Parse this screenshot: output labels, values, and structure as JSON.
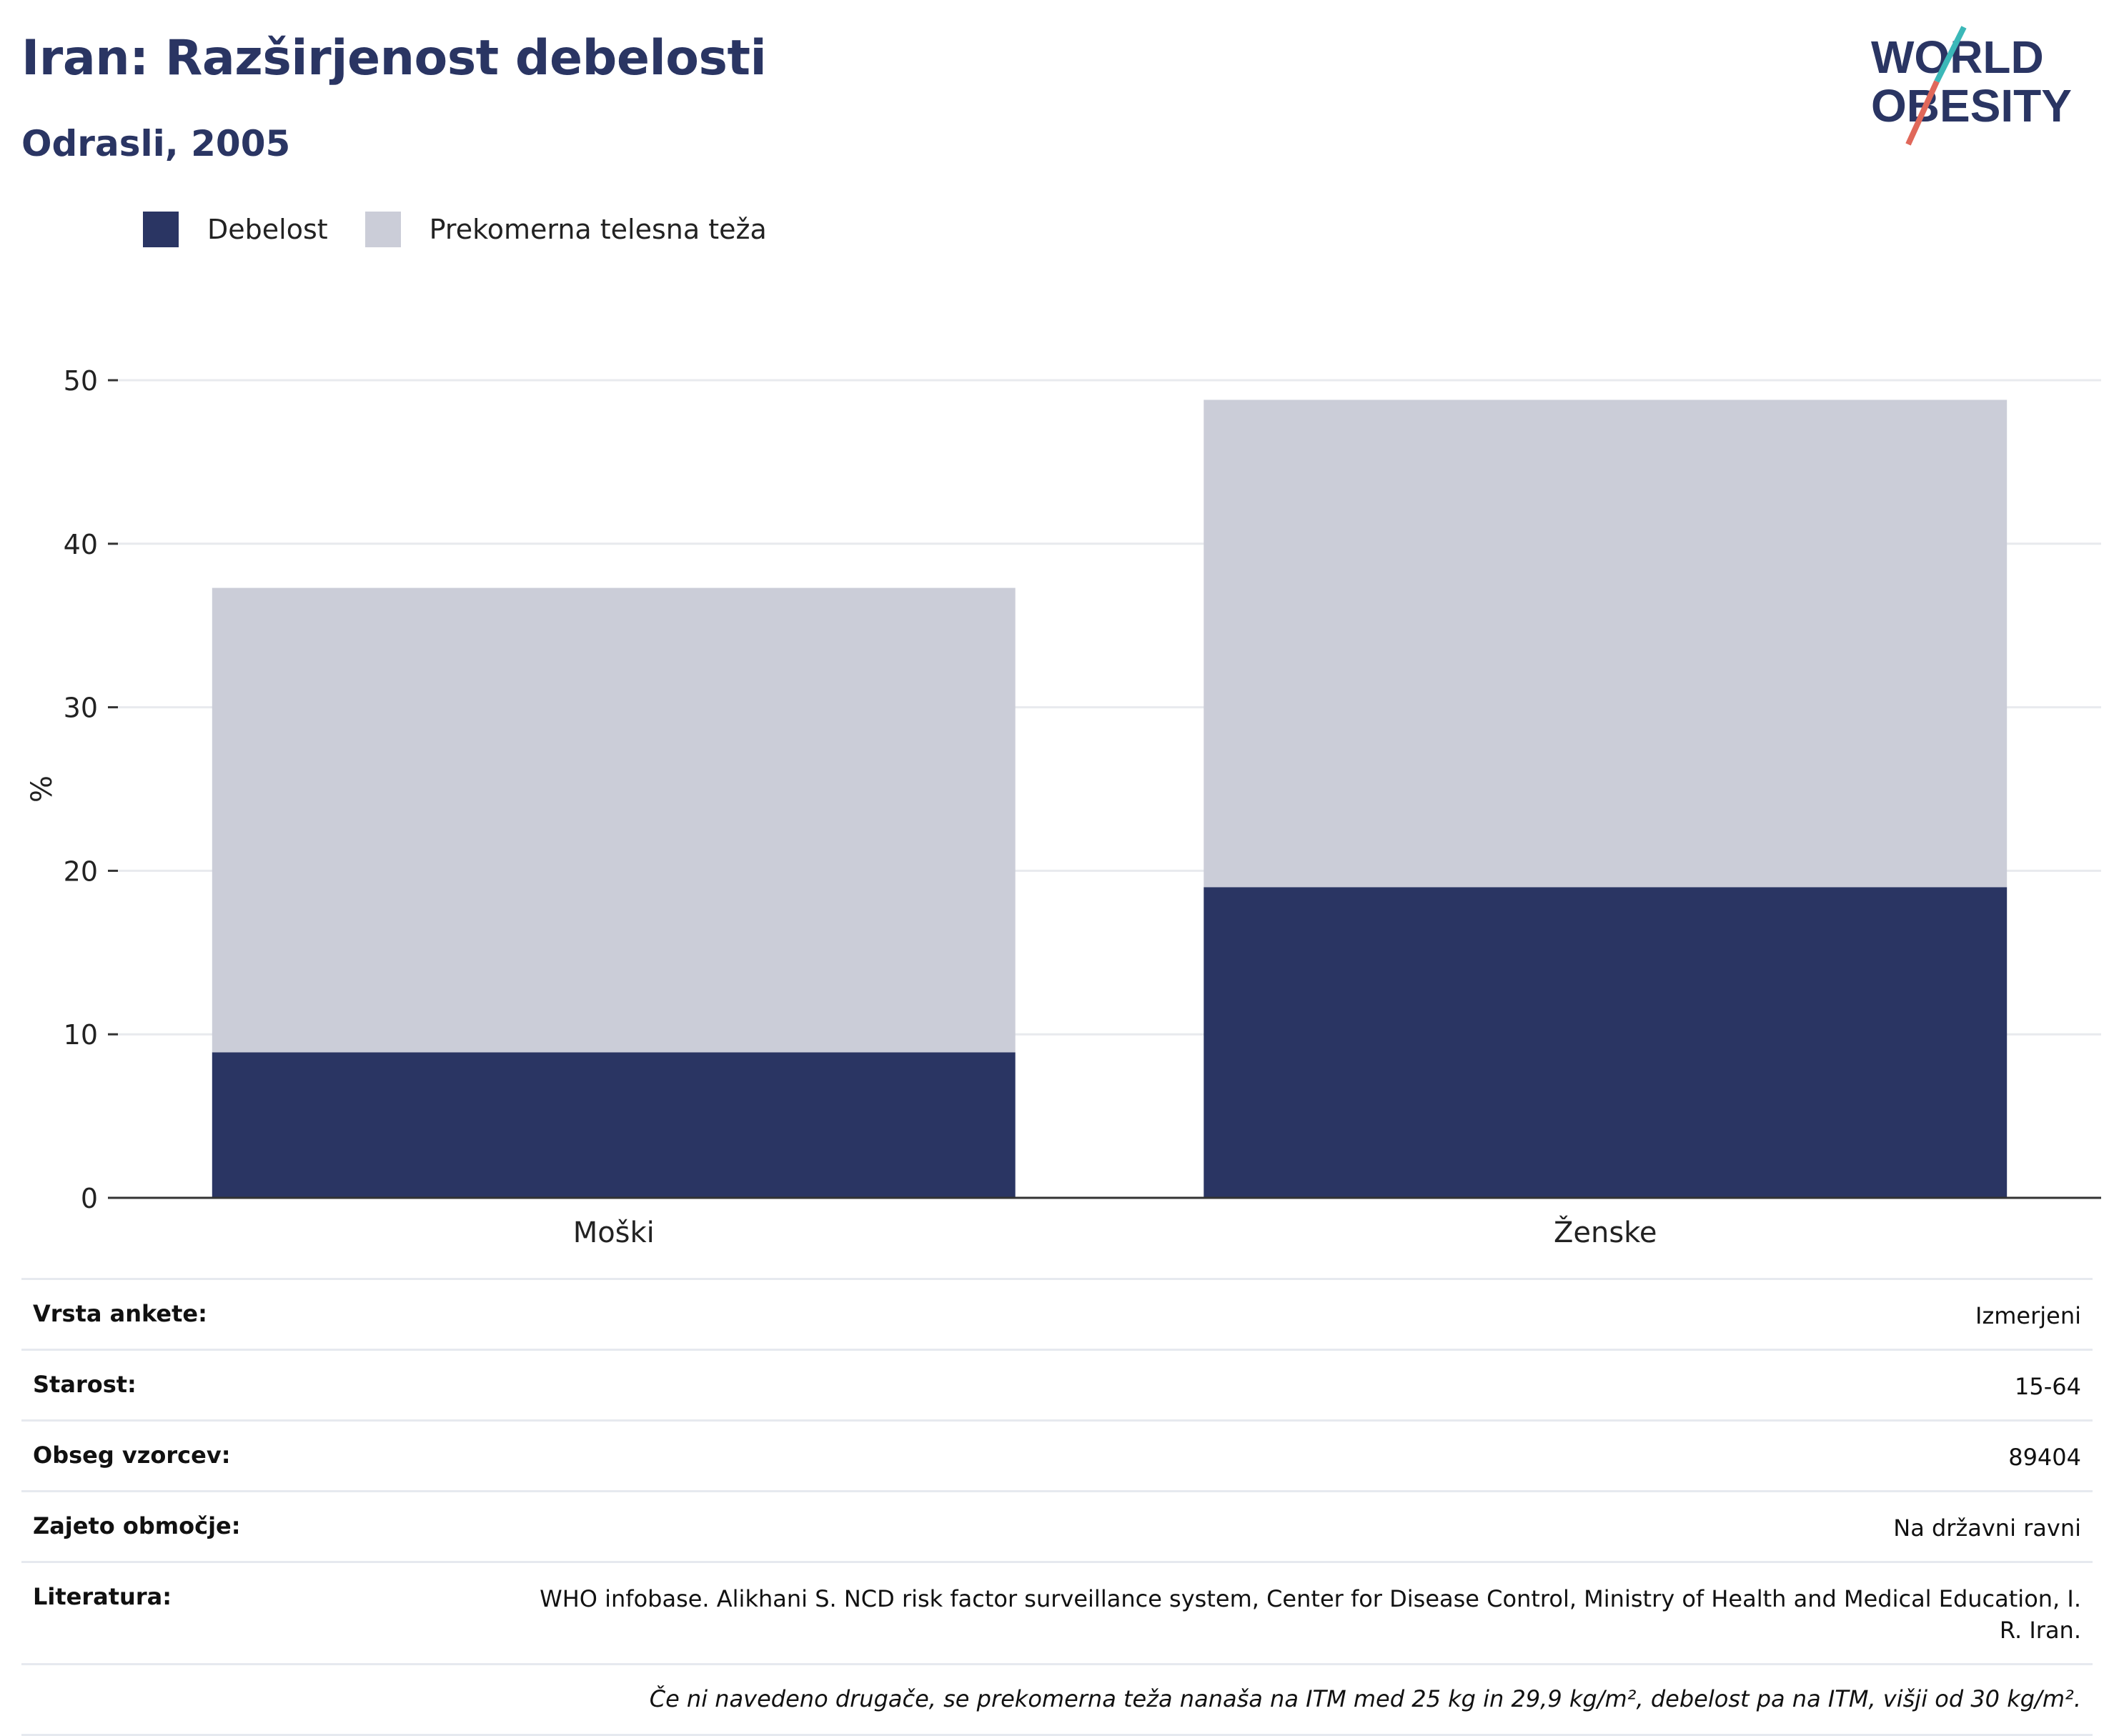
{
  "header": {
    "title": "Iran: Razširjenost debelosti",
    "subtitle": "Odrasli, 2005"
  },
  "logo": {
    "line1": "WORLD",
    "line2": "OBESITY",
    "colors": {
      "text": "#2a3563",
      "teal": "#3bb8b8",
      "red": "#e0685a"
    }
  },
  "legend": [
    {
      "label": "Debelost",
      "color": "#2a3563"
    },
    {
      "label": "Prekomerna telesna teža",
      "color": "#cbcdd8"
    }
  ],
  "chart_data": {
    "type": "bar",
    "stacked": true,
    "categories": [
      "Moški",
      "Ženske"
    ],
    "series": [
      {
        "name": "Debelost",
        "values": [
          8.9,
          19.0
        ],
        "color": "#2a3563"
      },
      {
        "name": "Prekomerna telesna teža",
        "values": [
          28.4,
          29.8
        ],
        "color": "#cbcdd8"
      }
    ],
    "ylabel": "%",
    "ylim": [
      0,
      50
    ],
    "yticks": [
      0,
      10,
      20,
      30,
      40,
      50
    ],
    "grid": true,
    "legend_position": "top-left"
  },
  "info": {
    "rows": [
      {
        "key": "Vrsta ankete:",
        "value": "Izmerjeni"
      },
      {
        "key": "Starost:",
        "value": "15-64"
      },
      {
        "key": "Obseg vzorcev:",
        "value": "89404"
      },
      {
        "key": "Zajeto območje:",
        "value": "Na državni ravni"
      },
      {
        "key": "Literatura:",
        "value": "WHO infobase. Alikhani S. NCD risk factor surveillance system, Center for Disease Control, Ministry of Health and Medical Education, I. R. Iran."
      }
    ],
    "note": "Če ni navedeno drugače, se prekomerna teža nanaša na ITM med 25 kg in 29,9 kg/m², debelost pa na ITM, višji od 30 kg/m²."
  }
}
